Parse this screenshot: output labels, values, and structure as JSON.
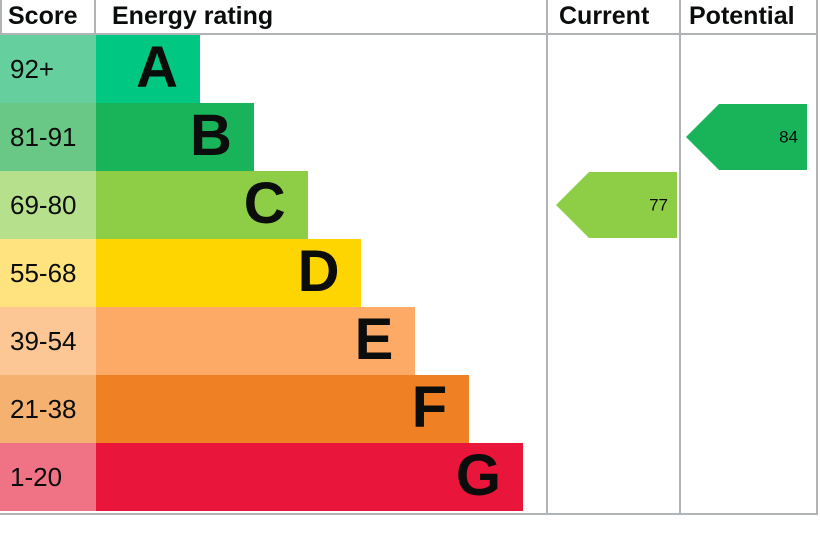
{
  "chart_data": {
    "type": "bar",
    "subtype": "epc-energy-efficiency-rating",
    "title": "Energy rating",
    "columns": [
      "Score",
      "Energy rating",
      "Current",
      "Potential"
    ],
    "bands": [
      {
        "letter": "A",
        "score_range": "92+",
        "min": 92,
        "max": 100,
        "color": "#00c781",
        "score_cell_color": "#65cf9e"
      },
      {
        "letter": "B",
        "score_range": "81-91",
        "min": 81,
        "max": 91,
        "color": "#19b459",
        "score_cell_color": "#6ac886"
      },
      {
        "letter": "C",
        "score_range": "69-80",
        "min": 69,
        "max": 80,
        "color": "#8dce46",
        "score_cell_color": "#b7e08c"
      },
      {
        "letter": "D",
        "score_range": "55-68",
        "min": 55,
        "max": 68,
        "color": "#ffd500",
        "score_cell_color": "#ffe37f"
      },
      {
        "letter": "E",
        "score_range": "39-54",
        "min": 39,
        "max": 54,
        "color": "#fcaa65",
        "score_cell_color": "#fdc795"
      },
      {
        "letter": "F",
        "score_range": "21-38",
        "min": 21,
        "max": 38,
        "color": "#ef8023",
        "score_cell_color": "#f4b170"
      },
      {
        "letter": "G",
        "score_range": "1-20",
        "min": 1,
        "max": 20,
        "color": "#e9153b",
        "score_cell_color": "#f07385"
      }
    ],
    "markers": {
      "current": {
        "value": 77,
        "band": "C",
        "color": "#8dce46"
      },
      "potential": {
        "value": 84,
        "band": "B",
        "color": "#19b459"
      }
    },
    "grid_color": "#b1b4b6",
    "text_color": "#0b0c0c",
    "background": "#ffffff"
  }
}
